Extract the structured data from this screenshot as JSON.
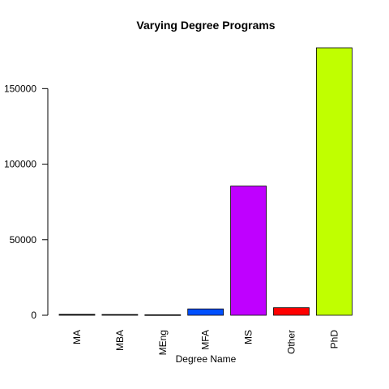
{
  "chart_data": {
    "type": "bar",
    "title": "Varying Degree Programs",
    "xlabel": "Degree Name",
    "ylabel": "",
    "ylim": [
      0,
      177000
    ],
    "yticks": [
      0,
      50000,
      100000,
      150000
    ],
    "grid": false,
    "categories": [
      "MA",
      "MBA",
      "MEng",
      "MFA",
      "MS",
      "Other",
      "PhD"
    ],
    "values": [
      600,
      500,
      300,
      4200,
      85500,
      5000,
      177000
    ],
    "colors": [
      "#000000",
      "#000000",
      "#000000",
      "#0050FF",
      "#BF00FF",
      "#FF0000",
      "#C0FF00"
    ]
  }
}
